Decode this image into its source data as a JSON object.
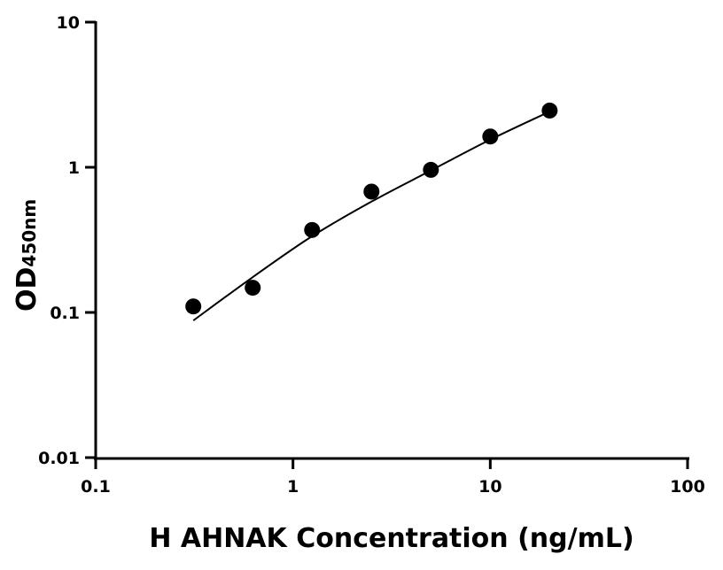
{
  "chart_data": {
    "type": "scatter",
    "title": "",
    "xlabel": "H AHNAK Concentration (ng/mL)",
    "ylabel": "OD",
    "ylabel_subscript": "450nm",
    "xscale": "log",
    "yscale": "log",
    "xlim": [
      0.1,
      100
    ],
    "ylim": [
      0.01,
      10
    ],
    "xticks": [
      "0.1",
      "1",
      "10",
      "100"
    ],
    "yticks": [
      "0.01",
      "0.1",
      "1",
      "10"
    ],
    "grid": false,
    "legend": "none",
    "point_color": "#000000",
    "points": [
      {
        "x": 0.3125,
        "y": 0.11
      },
      {
        "x": 0.625,
        "y": 0.148
      },
      {
        "x": 1.25,
        "y": 0.37
      },
      {
        "x": 2.5,
        "y": 0.68
      },
      {
        "x": 5,
        "y": 0.96
      },
      {
        "x": 10,
        "y": 1.63
      },
      {
        "x": 20,
        "y": 2.46
      }
    ],
    "fit_curve": [
      {
        "x": 0.3125,
        "y": 0.088
      },
      {
        "x": 0.625,
        "y": 0.175
      },
      {
        "x": 1.25,
        "y": 0.335
      },
      {
        "x": 2.5,
        "y": 0.58
      },
      {
        "x": 5,
        "y": 0.95
      },
      {
        "x": 10,
        "y": 1.55
      },
      {
        "x": 20,
        "y": 2.42
      }
    ]
  }
}
